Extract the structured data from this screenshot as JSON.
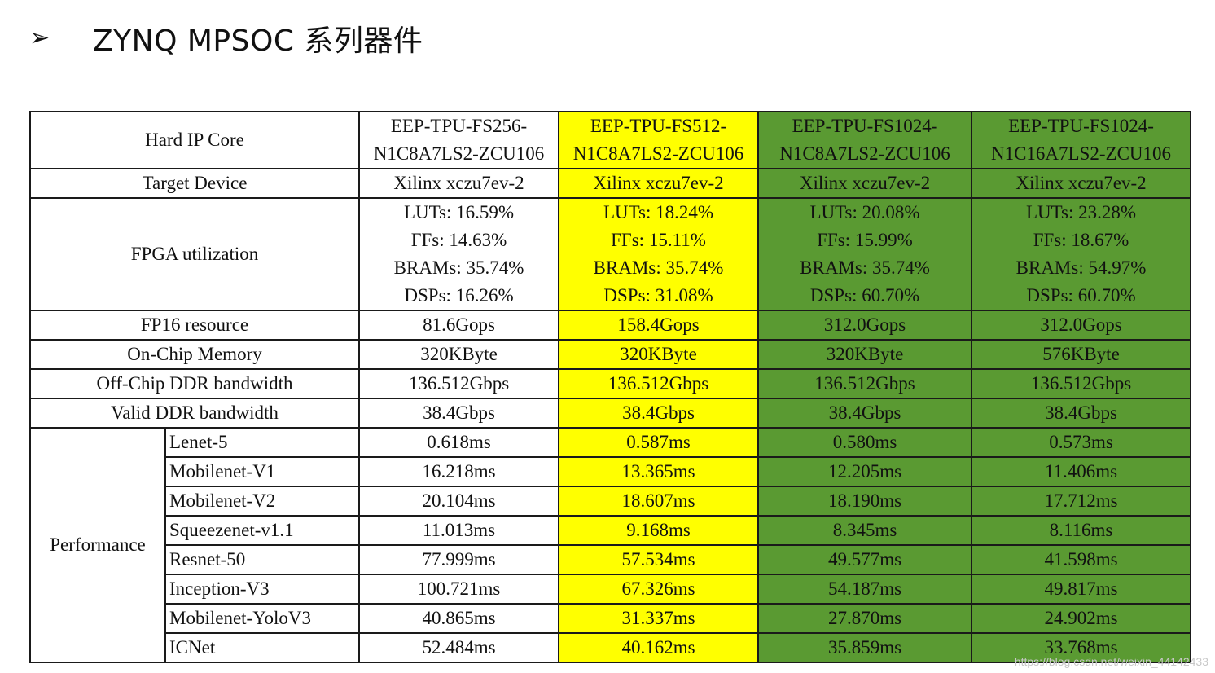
{
  "slide": {
    "bullet": "➢",
    "title": "ZYNQ MPSOC 系列器件"
  },
  "columns": [
    {
      "line1": "EEP-TPU-FS256-",
      "line2": "N1C8A7LS2-ZCU106",
      "highlight": "#ffffff"
    },
    {
      "line1": "EEP-TPU-FS512-",
      "line2": "N1C8A7LS2-ZCU106",
      "highlight": "#ffff00"
    },
    {
      "line1": "EEP-TPU-FS1024-",
      "line2": "N1C8A7LS2-ZCU106",
      "highlight": "#5a9a32"
    },
    {
      "line1": "EEP-TPU-FS1024-",
      "line2": "N1C16A7LS2-ZCU106",
      "highlight": "#5a9a32"
    }
  ],
  "rows": {
    "hard_ip": {
      "label": "Hard IP Core"
    },
    "target": {
      "label": "Target Device",
      "values": [
        "Xilinx xczu7ev-2",
        "Xilinx xczu7ev-2",
        "Xilinx xczu7ev-2",
        "Xilinx xczu7ev-2"
      ]
    },
    "util": {
      "label": "FPGA utilization",
      "values": [
        {
          "luts": "LUTs: 16.59%",
          "ffs": "FFs: 14.63%",
          "brams": "BRAMs: 35.74%",
          "dsps": "DSPs: 16.26%"
        },
        {
          "luts": "LUTs: 18.24%",
          "ffs": "FFs: 15.11%",
          "brams": "BRAMs: 35.74%",
          "dsps": "DSPs: 31.08%"
        },
        {
          "luts": "LUTs: 20.08%",
          "ffs": "FFs: 15.99%",
          "brams": "BRAMs: 35.74%",
          "dsps": "DSPs: 60.70%"
        },
        {
          "luts": "LUTs: 23.28%",
          "ffs": "FFs: 18.67%",
          "brams": "BRAMs: 54.97%",
          "dsps": "DSPs: 60.70%"
        }
      ]
    },
    "fp16": {
      "label": "FP16 resource",
      "values": [
        "81.6Gops",
        "158.4Gops",
        "312.0Gops",
        "312.0Gops"
      ]
    },
    "onchip": {
      "label": "On-Chip Memory",
      "values": [
        "320KByte",
        "320KByte",
        "320KByte",
        "576KByte"
      ]
    },
    "offchip": {
      "label": "Off-Chip DDR bandwidth",
      "values": [
        "136.512Gbps",
        "136.512Gbps",
        "136.512Gbps",
        "136.512Gbps"
      ]
    },
    "valid": {
      "label": "Valid DDR bandwidth",
      "values": [
        "38.4Gbps",
        "38.4Gbps",
        "38.4Gbps",
        "38.4Gbps"
      ]
    }
  },
  "performance": {
    "label": "Performance",
    "models": [
      {
        "name": "Lenet-5",
        "values": [
          "0.618ms",
          "0.587ms",
          "0.580ms",
          "0.573ms"
        ]
      },
      {
        "name": "Mobilenet-V1",
        "values": [
          "16.218ms",
          "13.365ms",
          "12.205ms",
          "11.406ms"
        ]
      },
      {
        "name": "Mobilenet-V2",
        "values": [
          "20.104ms",
          "18.607ms",
          "18.190ms",
          "17.712ms"
        ]
      },
      {
        "name": "Squeezenet-v1.1",
        "values": [
          "11.013ms",
          "9.168ms",
          "8.345ms",
          "8.116ms"
        ]
      },
      {
        "name": "Resnet-50",
        "values": [
          "77.999ms",
          "57.534ms",
          "49.577ms",
          "41.598ms"
        ]
      },
      {
        "name": "Inception-V3",
        "values": [
          "100.721ms",
          "67.326ms",
          "54.187ms",
          "49.817ms"
        ]
      },
      {
        "name": "Mobilenet-YoloV3",
        "values": [
          "40.865ms",
          "31.337ms",
          "27.870ms",
          "24.902ms"
        ]
      },
      {
        "name": "ICNet",
        "values": [
          "52.484ms",
          "40.162ms",
          "35.859ms",
          "33.768ms"
        ]
      }
    ]
  },
  "watermark": "https://blog.csdn.net/weixin_44142433"
}
